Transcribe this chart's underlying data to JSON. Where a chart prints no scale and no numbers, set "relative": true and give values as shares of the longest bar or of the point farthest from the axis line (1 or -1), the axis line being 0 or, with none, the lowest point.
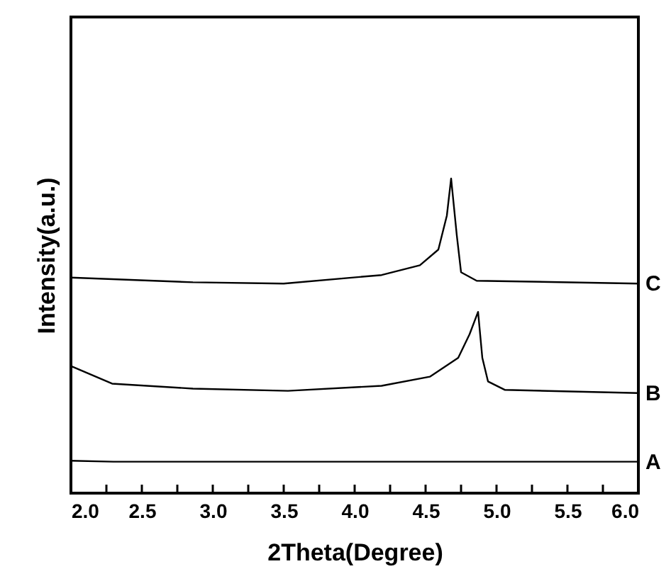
{
  "chart_data": {
    "type": "line",
    "xlabel": "2Theta(Degree)",
    "ylabel": "Intensity(a.u.)",
    "relative": true,
    "xlim": [
      2.0,
      6.0
    ],
    "xticks": [
      {
        "value": 2,
        "label": "2.0"
      },
      {
        "value": 2.25,
        "label": null
      },
      {
        "value": 2.5,
        "label": "2.5"
      },
      {
        "value": 2.75,
        "label": null
      },
      {
        "value": 3,
        "label": "3.0"
      },
      {
        "value": 3.25,
        "label": null
      },
      {
        "value": 3.5,
        "label": "3.5"
      },
      {
        "value": 3.75,
        "label": null
      },
      {
        "value": 4,
        "label": "4.0"
      },
      {
        "value": 4.25,
        "label": null
      },
      {
        "value": 4.5,
        "label": "4.5"
      },
      {
        "value": 4.75,
        "label": null
      },
      {
        "value": 5,
        "label": "5.0"
      },
      {
        "value": 5.25,
        "label": null
      },
      {
        "value": 5.5,
        "label": "5.5"
      },
      {
        "value": 5.75,
        "label": null
      },
      {
        "value": 6,
        "label": "6.0"
      }
    ],
    "tick_labels": "x",
    "grid": false,
    "marker": "none",
    "line_style": "solid",
    "series": [
      {
        "name": "A",
        "color": "#000000",
        "x": [
          2.0,
          2.3,
          3.0,
          4.0,
          5.0,
          6.0
        ],
        "values": [
          0.103,
          0.1,
          0.1,
          0.1,
          0.1,
          0.1
        ]
      },
      {
        "name": "B",
        "color": "#000000",
        "x": [
          2.0,
          2.29,
          2.86,
          3.53,
          4.19,
          4.53,
          4.73,
          4.81,
          4.87,
          4.9,
          4.94,
          5.06,
          6.0
        ],
        "values": [
          0.404,
          0.348,
          0.332,
          0.325,
          0.341,
          0.37,
          0.43,
          0.505,
          0.576,
          0.43,
          0.355,
          0.328,
          0.318
        ]
      },
      {
        "name": "C",
        "color": "#000000",
        "x": [
          2.0,
          2.86,
          3.5,
          4.19,
          4.46,
          4.59,
          4.65,
          4.68,
          4.72,
          4.75,
          4.86,
          6.0
        ],
        "values": [
          0.685,
          0.67,
          0.666,
          0.693,
          0.724,
          0.774,
          0.882,
          1.0,
          0.819,
          0.702,
          0.675,
          0.666
        ]
      }
    ]
  }
}
